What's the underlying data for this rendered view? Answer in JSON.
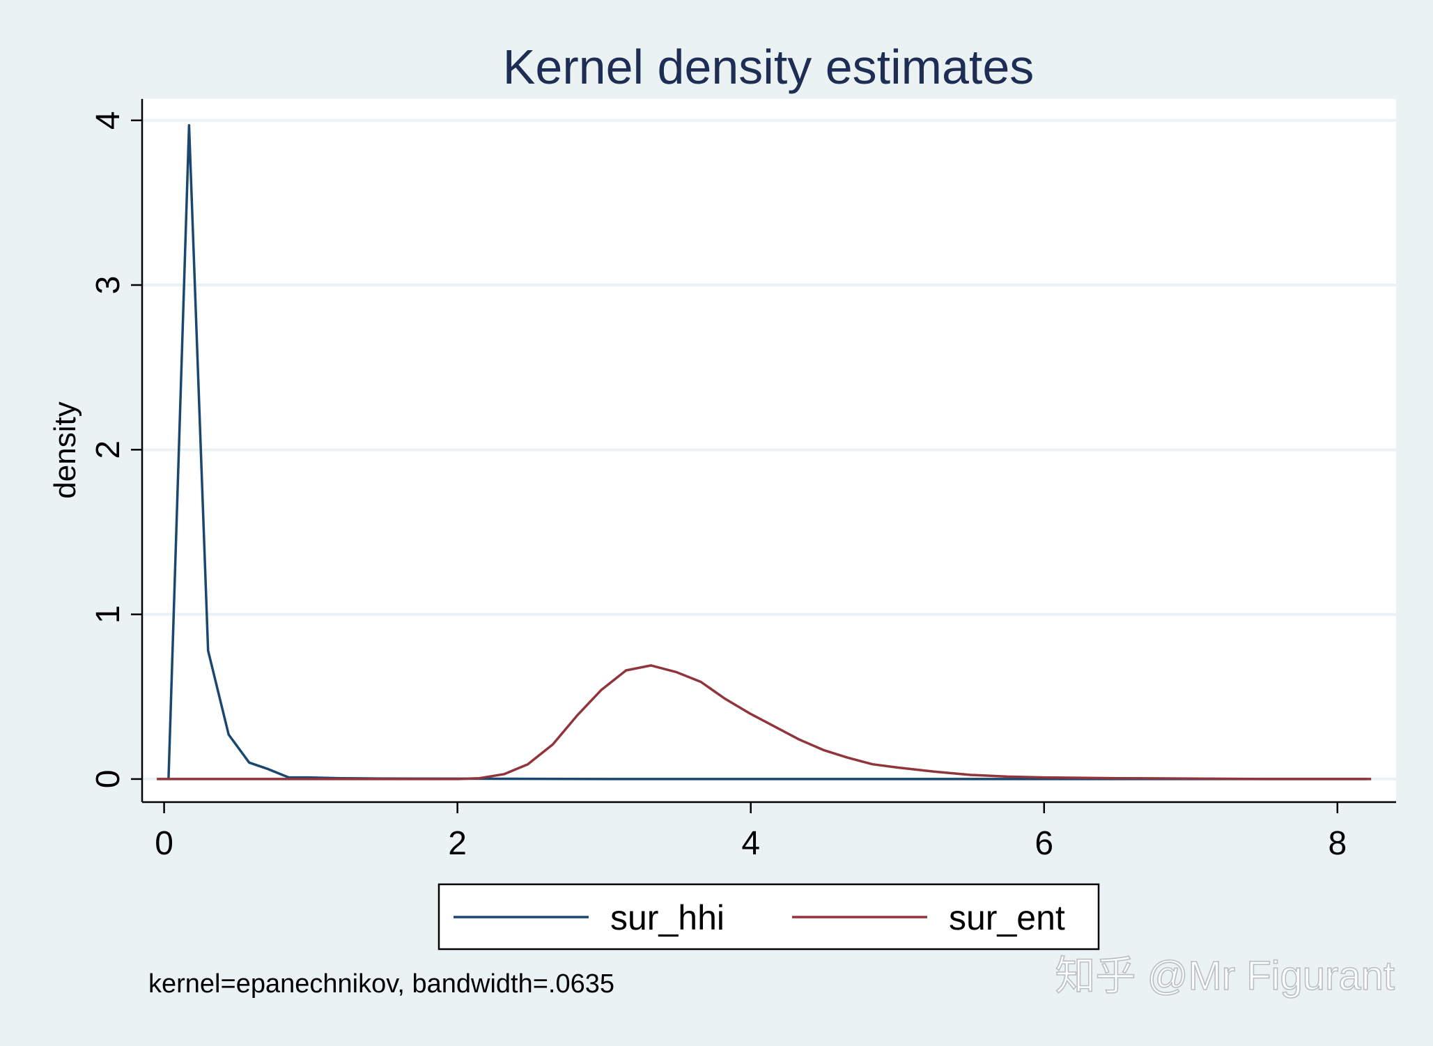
{
  "chart_data": {
    "type": "line",
    "title": "Kernel density estimates",
    "xlabel": "",
    "ylabel": "density",
    "xlim": [
      -0.15,
      8.4
    ],
    "ylim": [
      -0.14,
      4.13
    ],
    "xticks": [
      0,
      2,
      4,
      6,
      8
    ],
    "yticks": [
      0,
      1,
      2,
      3,
      4
    ],
    "grid": true,
    "legend_position": "bottom-center",
    "note": "kernel=epanechnikov, bandwidth=.0635",
    "watermark": "知乎 @Mr Figurant",
    "colors": {
      "sur_hhi": "#1a476f",
      "sur_ent": "#90353b",
      "background": "#eaf2f3",
      "plot_area": "#ffffff",
      "grid": "#eaf2f3"
    },
    "series": [
      {
        "name": "sur_hhi",
        "x": [
          0.03,
          0.17,
          0.3,
          0.44,
          0.58,
          0.71,
          0.85,
          0.98,
          1.2,
          1.5,
          2.0,
          3.0,
          4.0,
          5.0,
          6.0,
          7.0,
          8.2
        ],
        "y": [
          0.0,
          3.97,
          0.78,
          0.27,
          0.1,
          0.06,
          0.01,
          0.01,
          0.005,
          0.003,
          0.002,
          0.0,
          0.0,
          0.0,
          0.0,
          0.0,
          0.0
        ]
      },
      {
        "name": "sur_ent",
        "x": [
          -0.05,
          1.0,
          2.0,
          2.15,
          2.32,
          2.48,
          2.65,
          2.82,
          2.98,
          3.15,
          3.32,
          3.49,
          3.66,
          3.82,
          3.99,
          4.16,
          4.33,
          4.5,
          4.66,
          4.83,
          5.0,
          5.25,
          5.5,
          5.75,
          6.0,
          6.5,
          7.0,
          7.5,
          8.23
        ],
        "y": [
          0.0,
          0.0,
          0.0,
          0.005,
          0.03,
          0.09,
          0.21,
          0.39,
          0.54,
          0.66,
          0.69,
          0.65,
          0.59,
          0.49,
          0.4,
          0.32,
          0.24,
          0.175,
          0.13,
          0.09,
          0.07,
          0.045,
          0.025,
          0.015,
          0.01,
          0.005,
          0.003,
          0.0,
          0.0
        ]
      }
    ]
  }
}
